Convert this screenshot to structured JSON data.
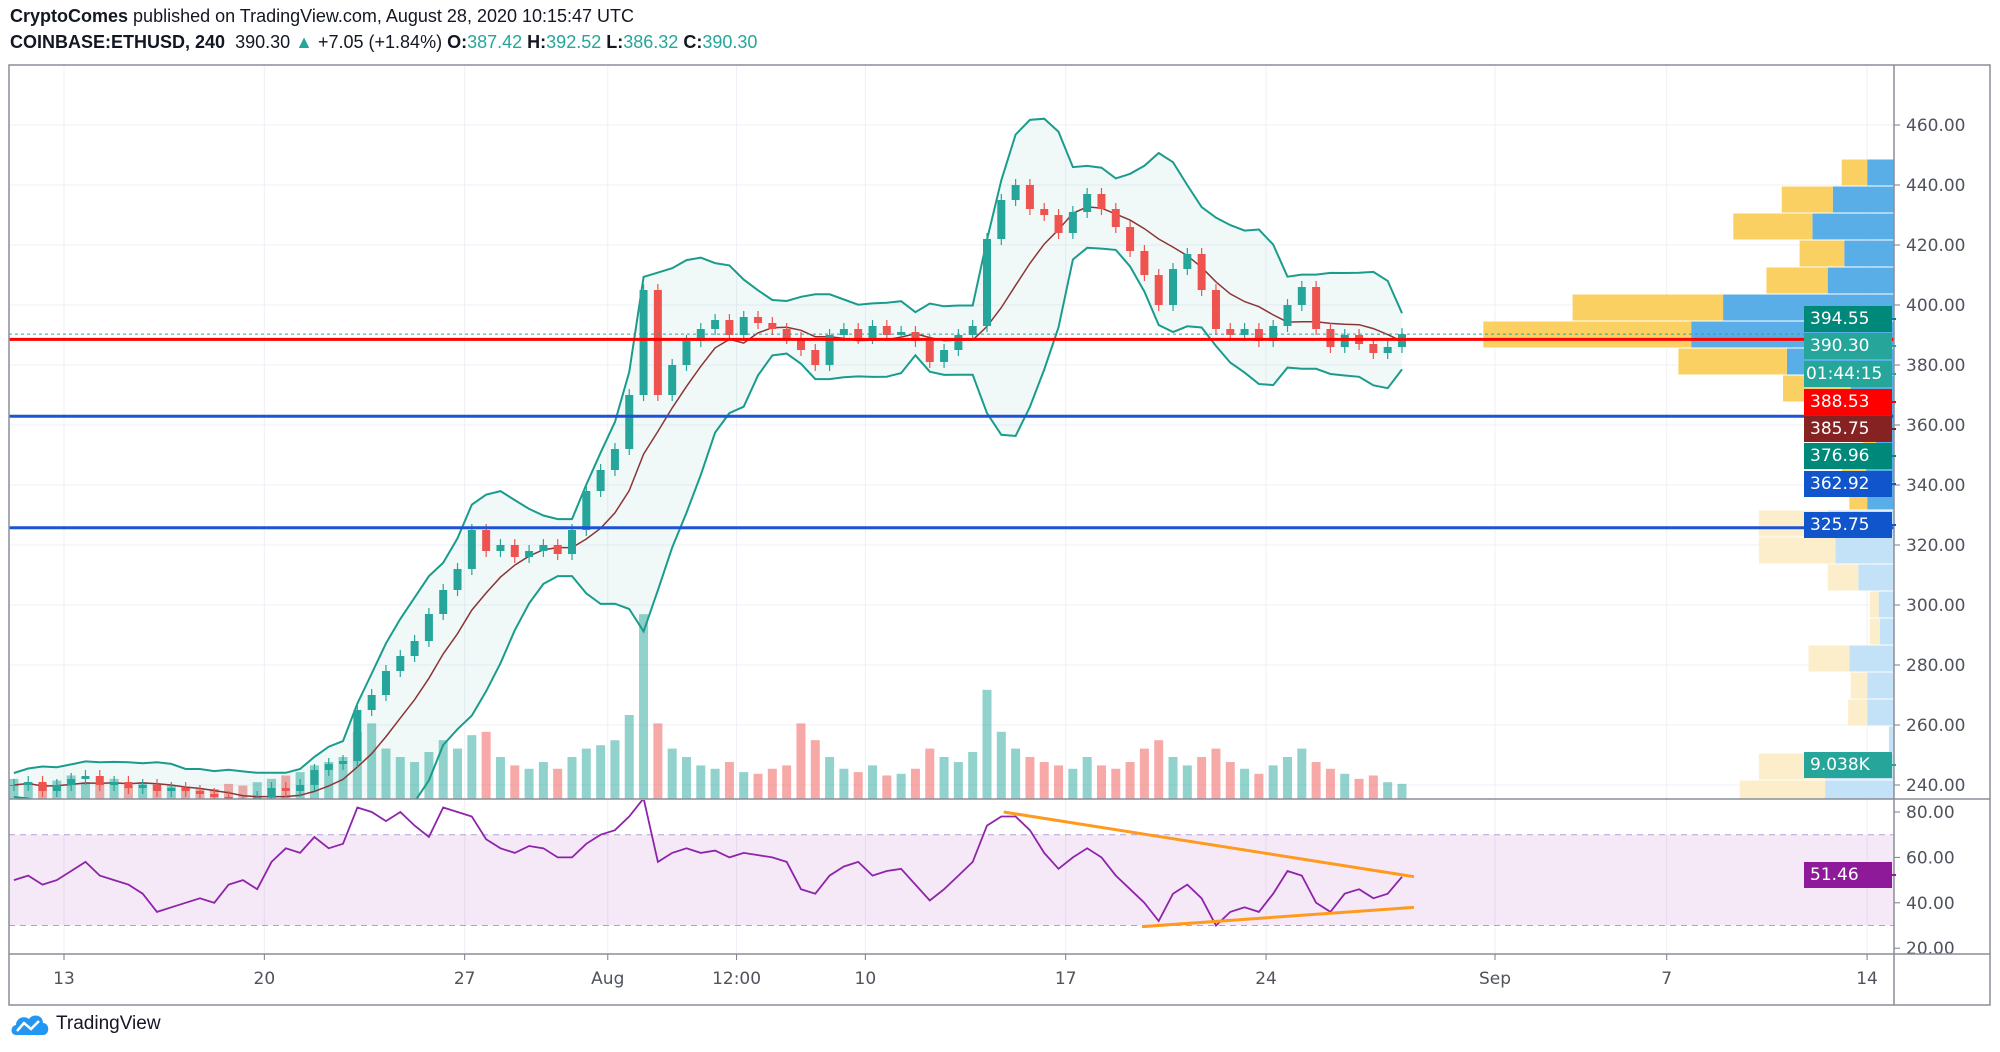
{
  "header": {
    "author": "CryptoComes",
    "published": "published on TradingView.com, August 28, 2020 10:15:47 UTC",
    "symbol": "COINBASE:ETHUSD, 240",
    "last": "390.30",
    "change": "+7.05 (+1.84%)",
    "o_label": "O:",
    "o": "387.42",
    "h_label": "H:",
    "h": "392.52",
    "l_label": "L:",
    "l": "386.32",
    "c_label": "C:",
    "c": "390.30",
    "up_arrow_icon": "triangle-up"
  },
  "price_labels": [
    {
      "text": "394.55",
      "color": "#00897b"
    },
    {
      "text": "390.30",
      "color": "#26a69a"
    },
    {
      "text": "01:44:15",
      "color": "#26a69a"
    },
    {
      "text": "388.53",
      "color": "#ff0000"
    },
    {
      "text": "385.75",
      "color": "#862222"
    },
    {
      "text": "376.96",
      "color": "#00897b"
    },
    {
      "text": "362.92",
      "color": "#1155cc"
    },
    {
      "text": "325.75",
      "color": "#1155cc"
    },
    {
      "text": "9.038K",
      "color": "#26a69a"
    },
    {
      "text": "51.46",
      "color": "#8e1a9a"
    }
  ],
  "footer": {
    "brand": "TradingView",
    "logo_icon": "tradingview-cloud-logo"
  },
  "chart_data": {
    "type": "candlestick",
    "interval": "240",
    "start": "2020-07-11",
    "candle_hours": 12,
    "price_axis": {
      "ticks": [
        "240.00",
        "260.00",
        "280.00",
        "300.00",
        "320.00",
        "340.00",
        "360.00",
        "380.00",
        "400.00",
        "420.00",
        "440.00",
        "460.00"
      ],
      "range": [
        232,
        475
      ]
    },
    "time_axis": [
      {
        "label": "13",
        "date": "2020-07-13T00:00"
      },
      {
        "label": "20",
        "date": "2020-07-20T00:00"
      },
      {
        "label": "27",
        "date": "2020-07-27T00:00"
      },
      {
        "label": "Aug",
        "date": "2020-08-01T00:00"
      },
      {
        "label": "12:00",
        "date": "2020-08-05T12:00"
      },
      {
        "label": "10",
        "date": "2020-08-10T00:00"
      },
      {
        "label": "17",
        "date": "2020-08-17T00:00"
      },
      {
        "label": "24",
        "date": "2020-08-24T00:00"
      },
      {
        "label": "Sep",
        "date": "2020-09-01T00:00"
      },
      {
        "label": "7",
        "date": "2020-09-07T00:00"
      },
      {
        "label": "14",
        "date": "2020-09-14T00:00"
      }
    ],
    "closes": [
      240,
      241,
      238,
      240,
      242,
      243,
      240,
      241,
      239,
      240,
      238,
      239,
      238,
      237,
      236,
      234,
      233,
      236,
      239,
      238,
      240,
      245,
      247,
      248,
      265,
      270,
      278,
      283,
      288,
      297,
      305,
      312,
      325,
      318,
      320,
      316,
      318,
      320,
      317,
      325,
      338,
      345,
      352,
      370,
      405,
      370,
      380,
      388,
      392,
      395,
      390,
      396,
      394,
      392,
      389,
      385,
      380,
      390,
      392,
      389,
      393,
      390,
      391,
      388,
      381,
      385,
      390,
      393,
      422,
      435,
      440,
      432,
      430,
      424,
      431,
      437,
      432,
      426,
      418,
      410,
      400,
      412,
      417,
      405,
      392,
      390,
      392,
      388,
      393,
      400,
      406,
      392,
      386,
      390,
      387,
      384,
      386,
      390.3
    ],
    "volume_k": [
      12,
      10,
      9,
      11,
      14,
      10,
      9,
      12,
      8,
      10,
      9,
      8,
      7,
      6,
      6,
      9,
      8,
      10,
      12,
      14,
      16,
      20,
      22,
      25,
      40,
      45,
      30,
      25,
      22,
      28,
      35,
      30,
      38,
      40,
      25,
      20,
      18,
      22,
      18,
      25,
      30,
      32,
      35,
      50,
      110,
      45,
      30,
      25,
      20,
      18,
      22,
      16,
      15,
      18,
      20,
      45,
      35,
      25,
      18,
      16,
      20,
      14,
      15,
      18,
      30,
      25,
      22,
      28,
      65,
      40,
      30,
      25,
      22,
      20,
      18,
      25,
      20,
      18,
      22,
      30,
      35,
      25,
      20,
      25,
      30,
      22,
      18,
      15,
      20,
      25,
      30,
      22,
      18,
      15,
      12,
      14,
      10,
      9.038
    ],
    "rsi": [
      50,
      52,
      48,
      50,
      54,
      58,
      52,
      50,
      48,
      44,
      36,
      38,
      40,
      42,
      40,
      48,
      50,
      46,
      58,
      64,
      62,
      69,
      64,
      66,
      82,
      80,
      76,
      80,
      74,
      69,
      82,
      80,
      78,
      68,
      64,
      62,
      65,
      64,
      60,
      60,
      66,
      70,
      72,
      78,
      86,
      58,
      62,
      64,
      62,
      63,
      60,
      62,
      61,
      60,
      58,
      46,
      44,
      52,
      56,
      58,
      52,
      54,
      55,
      48,
      41,
      46,
      52,
      58,
      74,
      78,
      78,
      72,
      62,
      55,
      60,
      64,
      60,
      52,
      46,
      40,
      32,
      44,
      48,
      42,
      30,
      36,
      38,
      36,
      44,
      54,
      52,
      40,
      36,
      44,
      46,
      42,
      44,
      51.46
    ],
    "rsi_axis": {
      "ticks": [
        "20.00",
        "40.00",
        "60.00",
        "80.00"
      ],
      "band": [
        30,
        70
      ]
    },
    "horizontal_lines": [
      {
        "price": 388.53,
        "color": "#ff0000"
      },
      {
        "price": 362.92,
        "color": "#1e53d6"
      },
      {
        "price": 325.75,
        "color": "#1e53d6"
      }
    ],
    "current_price_line": 390.3,
    "rsi_trendlines": [
      {
        "from": [
          "2020-08-14T20:00",
          80
        ],
        "to": [
          "2020-08-29T04:00",
          51.5
        ],
        "color": "#ff9a1f"
      },
      {
        "from": [
          "2020-08-19T16:00",
          29.5
        ],
        "to": [
          "2020-08-29T04:00",
          38
        ],
        "color": "#ff9a1f"
      }
    ],
    "volume_profile": [
      {
        "price": 444,
        "up": 21,
        "down": 20,
        "value_area": true
      },
      {
        "price": 435,
        "up": 48,
        "down": 40,
        "value_area": true
      },
      {
        "price": 426,
        "up": 64,
        "down": 62,
        "value_area": true
      },
      {
        "price": 417,
        "up": 39,
        "down": 35,
        "value_area": true
      },
      {
        "price": 408,
        "up": 52,
        "down": 48,
        "value_area": true
      },
      {
        "price": 399,
        "up": 134,
        "down": 118,
        "value_area": true
      },
      {
        "price": 390,
        "up": 159,
        "down": 163,
        "value_area": true
      },
      {
        "price": 381,
        "up": 84,
        "down": 85,
        "value_area": true
      },
      {
        "price": 372,
        "up": 34,
        "down": 53,
        "value_area": true
      },
      {
        "price": 363,
        "up": 17,
        "down": 14,
        "value_area": true
      },
      {
        "price": 354,
        "up": 14,
        "down": 10,
        "value_area": true
      },
      {
        "price": 345,
        "up": 22,
        "down": 19,
        "value_area": true
      },
      {
        "price": 336,
        "up": 21,
        "down": 14,
        "value_area": true
      },
      {
        "price": 327,
        "up": 52,
        "down": 54,
        "value_area": false
      },
      {
        "price": 318,
        "up": 46,
        "down": 60,
        "value_area": false
      },
      {
        "price": 309,
        "up": 28,
        "down": 24,
        "value_area": false
      },
      {
        "price": 300,
        "up": 12,
        "down": 7,
        "value_area": false
      },
      {
        "price": 291,
        "up": 11,
        "down": 8,
        "value_area": false
      },
      {
        "price": 282,
        "up": 35,
        "down": 32,
        "value_area": false
      },
      {
        "price": 273,
        "up": 21,
        "down": 13,
        "value_area": false
      },
      {
        "price": 264,
        "up": 21,
        "down": 15,
        "value_area": false
      },
      {
        "price": 255,
        "up": 4,
        "down": 0,
        "value_area": false
      },
      {
        "price": 246,
        "up": 54,
        "down": 52,
        "value_area": false
      },
      {
        "price": 237,
        "up": 54,
        "down": 67,
        "value_area": false
      }
    ],
    "colors": {
      "up": "#26a69a",
      "down": "#ef5350",
      "bb": "#1a9c8c",
      "basis": "#8b3535",
      "rsi": "#8e24aa"
    }
  }
}
